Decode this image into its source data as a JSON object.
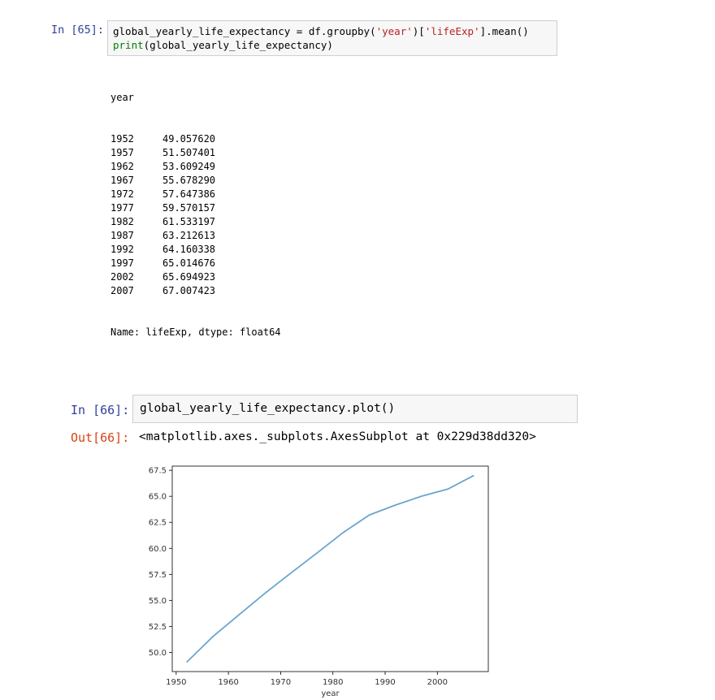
{
  "cell1": {
    "prompt": "In [65]:",
    "code": {
      "line1_var": "global_yearly_life_expectancy = df.groupby(",
      "line1_str1": "'year'",
      "line1_mid": ")[",
      "line1_str2": "'lifeExp'",
      "line1_end": "].mean()",
      "line2_call": "print",
      "line2_rest": "(global_yearly_life_expectancy)"
    },
    "output": {
      "header": "year",
      "rows": [
        {
          "year": "1952",
          "value": "49.057620"
        },
        {
          "year": "1957",
          "value": "51.507401"
        },
        {
          "year": "1962",
          "value": "53.609249"
        },
        {
          "year": "1967",
          "value": "55.678290"
        },
        {
          "year": "1972",
          "value": "57.647386"
        },
        {
          "year": "1977",
          "value": "59.570157"
        },
        {
          "year": "1982",
          "value": "61.533197"
        },
        {
          "year": "1987",
          "value": "63.212613"
        },
        {
          "year": "1992",
          "value": "64.160338"
        },
        {
          "year": "1997",
          "value": "65.014676"
        },
        {
          "year": "2002",
          "value": "65.694923"
        },
        {
          "year": "2007",
          "value": "67.007423"
        }
      ],
      "footer": "Name: lifeExp, dtype: float64"
    }
  },
  "cell2": {
    "prompt": "In [66]:",
    "code": "global_yearly_life_expectancy.plot()",
    "out_prompt": "Out[66]:",
    "out_text": "<matplotlib.axes._subplots.AxesSubplot at 0x229d38dd320>"
  },
  "chart_data": {
    "type": "line",
    "xlabel": "year",
    "ylabel": "",
    "x": [
      1952,
      1957,
      1962,
      1967,
      1972,
      1977,
      1982,
      1987,
      1992,
      1997,
      2002,
      2007
    ],
    "series": [
      {
        "values": [
          49.05762,
          51.507401,
          53.609249,
          55.67829,
          57.647386,
          59.570157,
          61.533197,
          63.212613,
          64.160338,
          65.014676,
          65.694923,
          67.007423
        ]
      }
    ],
    "xlim": [
      1949.25,
      2009.75
    ],
    "ylim": [
      48.16,
      67.9
    ],
    "xticks": [
      "1950",
      "1960",
      "1970",
      "1980",
      "1990",
      "2000"
    ],
    "xtick_values": [
      1950,
      1960,
      1970,
      1980,
      1990,
      2000
    ],
    "yticks": [
      "50.0",
      "52.5",
      "55.0",
      "57.5",
      "60.0",
      "62.5",
      "65.0",
      "67.5"
    ],
    "ytick_values": [
      50,
      52.5,
      55,
      57.5,
      60,
      62.5,
      65,
      67.5
    ],
    "grid": false,
    "line_color": "#6aa5d0"
  }
}
